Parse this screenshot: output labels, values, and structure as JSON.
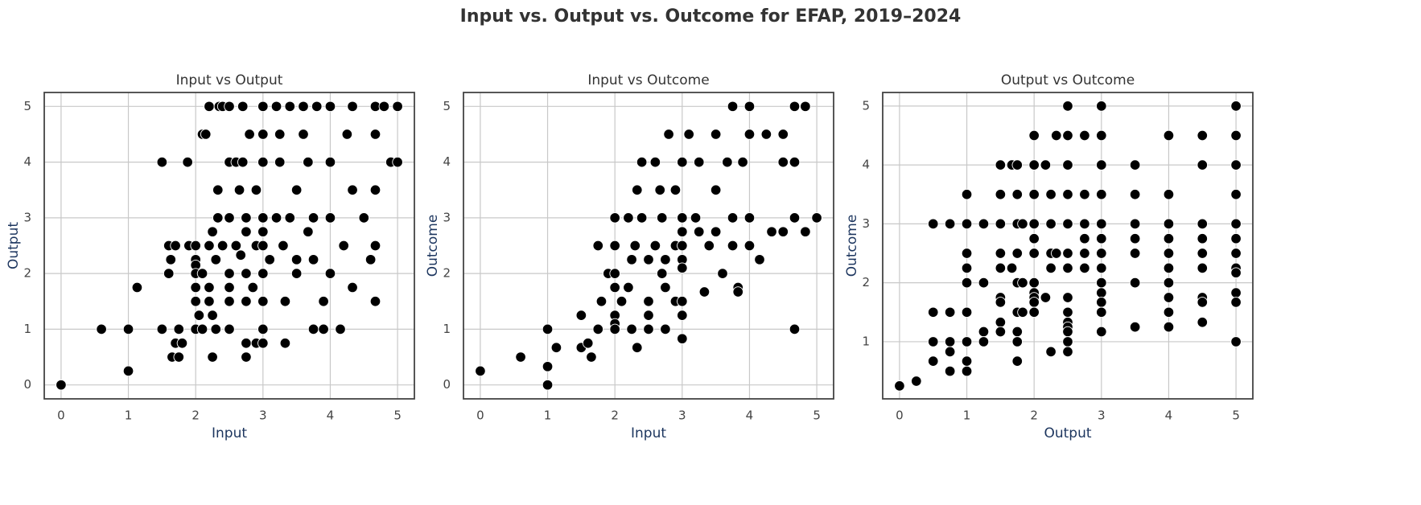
{
  "title": "Input vs. Output vs. Outcome for EFAP, 2019–2024",
  "chart_data": [
    {
      "type": "scatter",
      "title": "Input vs Output",
      "x_label": "Input",
      "y_label": "Output",
      "color": "#000000",
      "grid": true,
      "xlim": [
        -0.25,
        5.25
      ],
      "ylim": [
        -0.25,
        5.25
      ],
      "xticks": [
        0,
        1,
        2,
        3,
        4,
        5
      ],
      "yticks": [
        0,
        1,
        2,
        3,
        4,
        5
      ],
      "x": [
        0,
        0.6,
        1,
        1,
        1.13,
        1.5,
        1.5,
        1.6,
        1.6,
        1.63,
        1.65,
        1.7,
        1.7,
        1.75,
        1.75,
        1.8,
        1.88,
        1.9,
        2,
        2,
        2,
        2,
        2,
        2,
        2,
        2.05,
        2.1,
        2.1,
        2.1,
        2.15,
        2.2,
        2.2,
        2.2,
        2.2,
        2.25,
        2.25,
        2.25,
        2.3,
        2.3,
        2.33,
        2.33,
        2.35,
        2.4,
        2.4,
        2.5,
        2.5,
        2.5,
        2.5,
        2.5,
        2.5,
        2.5,
        2.6,
        2.6,
        2.65,
        2.67,
        2.7,
        2.7,
        2.75,
        2.75,
        2.75,
        2.75,
        2.75,
        2.75,
        2.8,
        2.85,
        2.9,
        2.9,
        2.9,
        3,
        3,
        3,
        3,
        3,
        3,
        3,
        3,
        3,
        3,
        3.1,
        3.2,
        3.2,
        3.25,
        3.25,
        3.3,
        3.33,
        3.33,
        3.4,
        3.4,
        3.5,
        3.5,
        3.5,
        3.6,
        3.6,
        3.67,
        3.67,
        3.75,
        3.75,
        3.75,
        3.8,
        3.9,
        3.9,
        4,
        4,
        4,
        4,
        4.15,
        4.2,
        4.25,
        4.33,
        4.33,
        4.33,
        4.5,
        4.6,
        4.67,
        4.67,
        4.67,
        4.67,
        4.67,
        4.8,
        4.9,
        5,
        5
      ],
      "values": [
        0,
        1,
        1,
        0.25,
        1.75,
        1,
        4,
        2,
        2.5,
        2.25,
        0.5,
        0.75,
        2.5,
        1,
        0.5,
        0.75,
        4,
        2.5,
        2.5,
        2.25,
        2.15,
        1.75,
        1.5,
        1,
        2,
        1.25,
        4.5,
        1,
        2,
        4.5,
        5,
        2.5,
        1.75,
        1.5,
        0.5,
        1.25,
        2.75,
        2.25,
        1,
        3.5,
        3,
        5,
        5,
        2.5,
        5,
        4,
        3,
        2,
        1.75,
        1.5,
        1,
        4,
        2.5,
        3.5,
        2.33,
        5,
        4,
        3,
        2.75,
        2,
        1.5,
        0.75,
        0.5,
        4.5,
        1.75,
        3.5,
        2.5,
        0.75,
        5,
        4.5,
        4,
        3,
        2.75,
        2.5,
        2,
        1.5,
        1,
        0.75,
        2.25,
        5,
        3,
        4.5,
        4,
        2.5,
        1.5,
        0.75,
        5,
        3,
        2.25,
        3.5,
        2,
        5,
        4.5,
        2.75,
        4,
        3,
        1,
        2.25,
        5,
        1.5,
        1,
        5,
        3,
        4,
        2,
        1,
        2.5,
        4.5,
        5,
        3.5,
        1.75,
        3,
        2.25,
        5,
        4.5,
        3.5,
        2.5,
        1.5,
        5,
        4,
        5,
        4
      ]
    },
    {
      "type": "scatter",
      "title": "Input vs Outcome",
      "x_label": "Input",
      "y_label": "Outcome",
      "color": "#000000",
      "grid": true,
      "xlim": [
        -0.25,
        5.25
      ],
      "ylim": [
        -0.25,
        5.25
      ],
      "xticks": [
        0,
        1,
        2,
        3,
        4,
        5
      ],
      "yticks": [
        0,
        1,
        2,
        3,
        4,
        5
      ],
      "x": [
        0,
        0.6,
        1,
        1,
        1,
        1.13,
        1.5,
        1.5,
        1.6,
        1.65,
        1.75,
        1.8,
        1.75,
        1.9,
        2,
        2,
        2,
        2,
        2,
        2,
        2,
        2.1,
        2.2,
        2.2,
        2.25,
        2.25,
        2.3,
        2.33,
        2.33,
        2.4,
        2.4,
        2.5,
        2.5,
        2.5,
        2.5,
        2.6,
        2.6,
        2.67,
        2.7,
        2.7,
        2.75,
        2.75,
        2.75,
        2.8,
        2.9,
        2.9,
        2.9,
        3,
        3,
        3,
        3,
        3,
        3,
        3,
        3,
        3,
        3.1,
        3.2,
        3.25,
        3.25,
        3.33,
        3.4,
        3.5,
        3.5,
        3.5,
        3.6,
        3.67,
        3.75,
        3.75,
        3.75,
        3.83,
        3.83,
        3.9,
        4,
        4,
        4,
        4,
        4.15,
        4.25,
        4.33,
        4.5,
        4.5,
        4.5,
        4.67,
        4.67,
        4.67,
        4.67,
        4.83,
        4.83,
        5
      ],
      "values": [
        0.25,
        0.5,
        1,
        0.33,
        0,
        0.67,
        1.25,
        0.67,
        0.75,
        0.5,
        1,
        1.5,
        2.5,
        2,
        2.5,
        3,
        2,
        1.75,
        1.25,
        1.1,
        1,
        1.5,
        3,
        1.75,
        2.25,
        1,
        2.5,
        0.67,
        3.5,
        4,
        3,
        2.25,
        1.5,
        1.25,
        1,
        4,
        2.5,
        3.5,
        3,
        2,
        2.25,
        1.75,
        1,
        4.5,
        3.5,
        2.5,
        1.5,
        4,
        3,
        2.75,
        2.5,
        2.25,
        2.1,
        1.5,
        1.25,
        0.83,
        4.5,
        3,
        4,
        2.75,
        1.67,
        2.5,
        4.5,
        3.5,
        2.75,
        2,
        4,
        5,
        3,
        2.5,
        1.75,
        1.67,
        4,
        5,
        4.5,
        3,
        2.5,
        2.25,
        4.5,
        2.75,
        4.5,
        4,
        2.75,
        5,
        4,
        3,
        1,
        5,
        2.75,
        3
      ]
    },
    {
      "type": "scatter",
      "title": "Output vs Outcome",
      "x_label": "Output",
      "y_label": "Outcome",
      "color": "#000000",
      "grid": true,
      "xlim": [
        -0.25,
        5.25
      ],
      "ylim": [
        0.03,
        5.23
      ],
      "xticks": [
        0,
        1,
        2,
        3,
        4,
        5
      ],
      "yticks": [
        1,
        2,
        3,
        4,
        5
      ],
      "x": [
        0,
        0.25,
        0.5,
        0.5,
        0.5,
        0.5,
        0.75,
        0.75,
        0.75,
        0.75,
        0.75,
        1,
        1,
        1,
        1,
        1,
        1,
        1,
        1,
        1,
        1.25,
        1.25,
        1.25,
        1.25,
        1.5,
        1.5,
        1.5,
        1.5,
        1.5,
        1.5,
        1.5,
        1.5,
        1.5,
        1.67,
        1.67,
        1.75,
        1.75,
        1.75,
        1.75,
        1.75,
        1.75,
        1.75,
        1.75,
        1.75,
        1.83,
        1.83,
        1.83,
        2,
        2,
        2,
        2,
        2,
        2,
        2,
        2,
        2,
        2,
        2,
        2.17,
        2.17,
        2.25,
        2.25,
        2.25,
        2.25,
        2.25,
        2.33,
        2.33,
        2.5,
        2.5,
        2.5,
        2.5,
        2.5,
        2.5,
        2.5,
        2.5,
        2.5,
        2.5,
        2.5,
        2.5,
        2.5,
        2.5,
        2.75,
        2.75,
        2.75,
        2.75,
        2.75,
        2.75,
        3,
        3,
        3,
        3,
        3,
        3,
        3,
        3,
        3,
        3,
        3,
        3,
        3,
        3.5,
        3.5,
        3.5,
        3.5,
        3.5,
        3.5,
        3.5,
        4,
        4,
        4,
        4,
        4,
        4,
        4,
        4,
        4,
        4,
        4.5,
        4.5,
        4.5,
        4.5,
        4.5,
        4.5,
        4.5,
        4.5,
        4.5,
        5,
        5,
        5,
        5,
        5,
        5,
        5,
        5,
        5,
        5,
        5,
        5
      ],
      "values": [
        0.25,
        0.33,
        3,
        1.5,
        1,
        0.67,
        3,
        1.5,
        1,
        0.83,
        0.5,
        3.5,
        3,
        2.5,
        2.25,
        2,
        1.5,
        1,
        0.67,
        0.5,
        3,
        2,
        1.17,
        1,
        4,
        3.5,
        3,
        2.5,
        2.25,
        1.75,
        1.67,
        1.33,
        1.17,
        4,
        2.25,
        4,
        3.5,
        3,
        2.5,
        2,
        1.5,
        1.17,
        1,
        0.67,
        3,
        2,
        1.5,
        4.5,
        4,
        3.5,
        3,
        2.75,
        2.5,
        2,
        1.83,
        1.75,
        1.67,
        1.5,
        4,
        1.75,
        3.5,
        3,
        2.5,
        2.25,
        0.83,
        4.5,
        2.5,
        5,
        4.5,
        4,
        3.5,
        3,
        2.5,
        2.25,
        1.75,
        1.5,
        1.33,
        1.25,
        1.17,
        1,
        0.83,
        4.5,
        3.5,
        3,
        2.75,
        2.5,
        2.25,
        5,
        4.5,
        4,
        3.5,
        3,
        2.75,
        2.5,
        2.25,
        2,
        1.83,
        1.67,
        1.5,
        1.17,
        4,
        3.5,
        3,
        2.75,
        2.5,
        2,
        1.25,
        4.5,
        3.5,
        3,
        2.75,
        2.5,
        2.25,
        2,
        1.75,
        1.5,
        1.25,
        4.5,
        4,
        3,
        2.75,
        2.5,
        2.25,
        1.75,
        1.67,
        1.33,
        5,
        4.5,
        4,
        3.5,
        3,
        2.75,
        2.5,
        2.25,
        2.17,
        1.83,
        1.67,
        1
      ]
    }
  ]
}
